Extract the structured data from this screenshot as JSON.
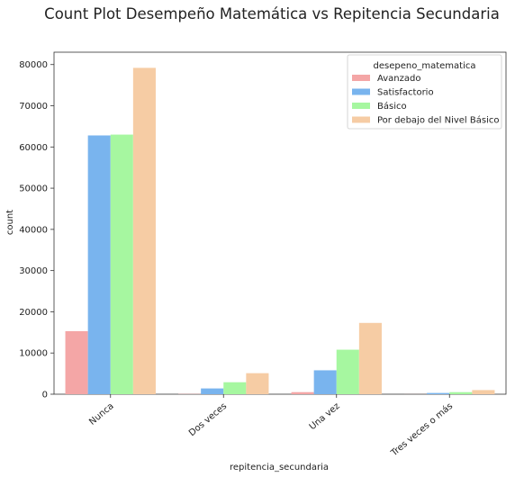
{
  "chart_data": {
    "type": "bar",
    "title": "Count Plot Desempeño Matemática vs Repitencia Secundaria",
    "xlabel": "repitencia_secundaria",
    "ylabel": "count",
    "categories": [
      "Nunca",
      "Dos veces",
      "Una vez",
      "Tres veces o más"
    ],
    "ylim": [
      0,
      83000
    ],
    "yticks": [
      0,
      10000,
      20000,
      30000,
      40000,
      50000,
      60000,
      70000,
      80000
    ],
    "grid": false,
    "legend": {
      "title": "desepeno_matematica",
      "placement": "top-right"
    },
    "series": [
      {
        "name": "Avanzado",
        "color": "#f4a6a6",
        "values": [
          15300,
          60,
          500,
          10
        ]
      },
      {
        "name": "Satisfactorio",
        "color": "#79b4ee",
        "values": [
          62800,
          1400,
          5800,
          300
        ]
      },
      {
        "name": "Básico",
        "color": "#a6f7a0",
        "values": [
          63000,
          2900,
          10800,
          500
        ]
      },
      {
        "name": "Por debajo del Nivel Básico",
        "color": "#f6cca4",
        "values": [
          79200,
          5100,
          17300,
          1000
        ]
      }
    ]
  }
}
